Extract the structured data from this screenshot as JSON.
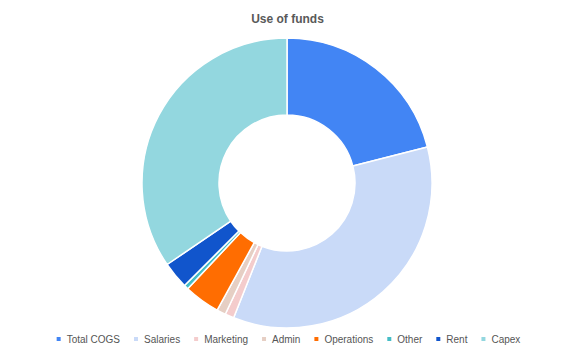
{
  "chart_data": {
    "type": "pie",
    "title": "Use of funds",
    "categories": [
      "Total COGS",
      "Salaries",
      "Marketing",
      "Admin",
      "Operations",
      "Other",
      "Rent",
      "Capex"
    ],
    "values": [
      21,
      35,
      1,
      1,
      4,
      0.5,
      3,
      34.5
    ],
    "colors": [
      "#4285f4",
      "#c9daf8",
      "#f4cccc",
      "#e6cfc4",
      "#ff6d01",
      "#46bdc6",
      "#1155cc",
      "#93d7df"
    ],
    "legend": "bottom"
  }
}
